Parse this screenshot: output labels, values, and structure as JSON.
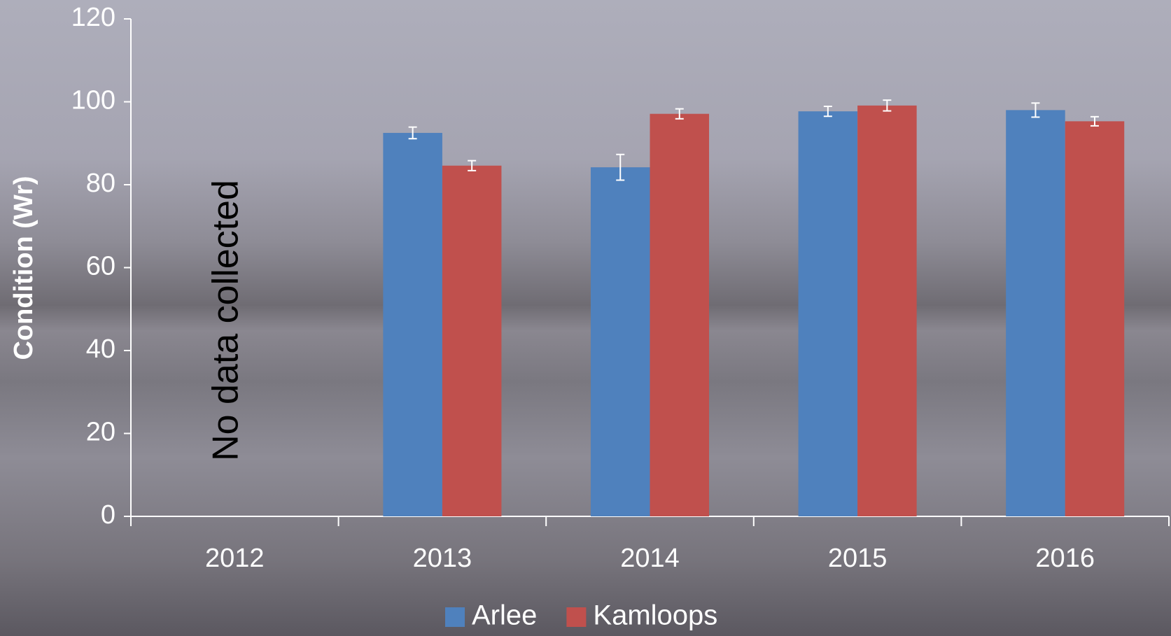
{
  "chart_data": {
    "type": "bar",
    "ylabel": "Condition (Wr)",
    "annotation": "No data collected",
    "categories": [
      "2012",
      "2013",
      "2014",
      "2015",
      "2016"
    ],
    "series": [
      {
        "name": "Arlee",
        "color": "#4f81bd",
        "values": [
          null,
          92.5,
          84.2,
          97.7,
          98.0
        ],
        "errors": [
          null,
          1.4,
          3.1,
          1.2,
          1.7
        ]
      },
      {
        "name": "Kamloops",
        "color": "#c0504d",
        "values": [
          null,
          84.6,
          97.1,
          99.1,
          95.3
        ],
        "errors": [
          null,
          1.2,
          1.2,
          1.3,
          1.1
        ]
      }
    ],
    "ylim": [
      0,
      120
    ],
    "yticks": [
      0,
      20,
      40,
      60,
      80,
      100,
      120
    ],
    "grid": false,
    "legend": "bottom"
  }
}
